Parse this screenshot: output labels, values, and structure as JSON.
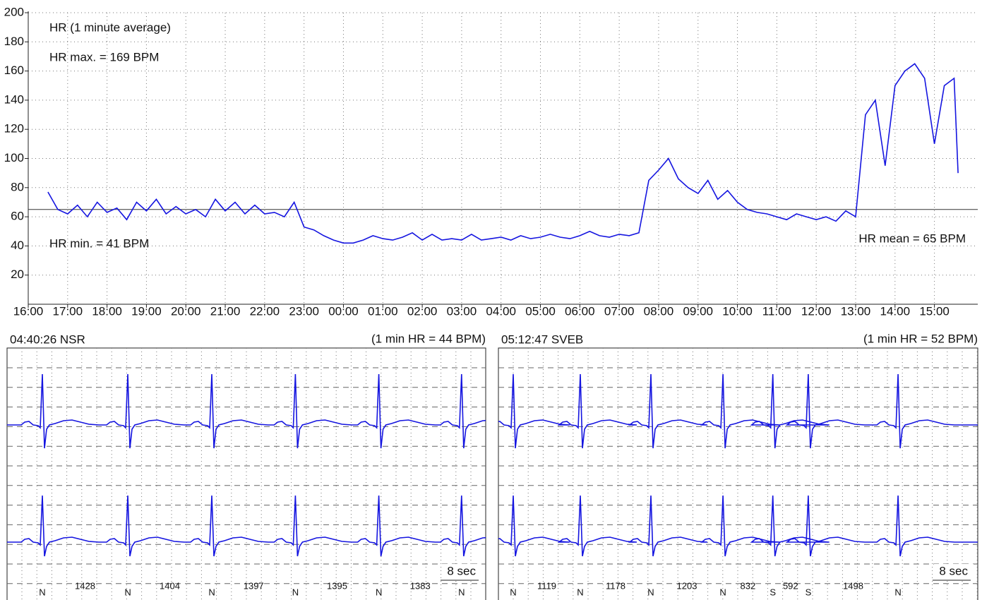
{
  "chart_data": [
    {
      "type": "line",
      "title": "HR (1 minute average)",
      "annotations": {
        "max": "HR max. = 169 BPM",
        "min": "HR min. = 41 BPM",
        "mean": "HR mean = 65 BPM"
      },
      "mean_line": 65,
      "color": "#1515e0",
      "x": [
        0.5,
        0.75,
        1,
        1.25,
        1.5,
        1.75,
        2,
        2.25,
        2.5,
        2.75,
        3,
        3.25,
        3.5,
        3.75,
        4,
        4.25,
        4.5,
        4.75,
        5,
        5.25,
        5.5,
        5.75,
        6,
        6.25,
        6.5,
        6.75,
        7,
        7.25,
        7.5,
        7.75,
        8,
        8.25,
        8.5,
        8.75,
        9,
        9.25,
        9.5,
        9.75,
        10,
        10.25,
        10.5,
        10.75,
        11,
        11.25,
        11.5,
        11.75,
        12,
        12.25,
        12.5,
        12.75,
        13,
        13.25,
        13.5,
        13.75,
        14,
        14.25,
        14.5,
        14.75,
        15,
        15.25,
        15.5,
        15.75,
        16,
        16.25,
        16.5,
        16.75,
        17,
        17.25,
        17.5,
        17.75,
        18,
        18.25,
        18.5,
        18.75,
        19,
        19.25,
        19.5,
        19.75,
        20,
        20.25,
        20.5,
        20.75,
        21,
        21.25,
        21.5,
        21.75,
        22,
        22.25,
        22.5,
        22.75,
        23,
        23.25,
        23.5,
        23.6
      ],
      "values": [
        77,
        65,
        62,
        68,
        60,
        70,
        63,
        66,
        58,
        70,
        64,
        72,
        62,
        67,
        62,
        65,
        60,
        72,
        64,
        70,
        62,
        68,
        62,
        63,
        60,
        70,
        53,
        51,
        47,
        44,
        42,
        42,
        44,
        47,
        45,
        44,
        46,
        49,
        44,
        48,
        44,
        45,
        44,
        48,
        44,
        45,
        46,
        44,
        47,
        45,
        46,
        48,
        46,
        45,
        47,
        50,
        47,
        46,
        48,
        47,
        49,
        85,
        92,
        100,
        86,
        80,
        76,
        85,
        72,
        78,
        70,
        65,
        63,
        62,
        60,
        58,
        62,
        60,
        58,
        60,
        57,
        64,
        60,
        130,
        140,
        95,
        150,
        160,
        165,
        155,
        110,
        150,
        155,
        90
      ],
      "xlim": [
        0,
        24.1
      ],
      "xticks": [
        {
          "value": 0,
          "label": "16:00"
        },
        {
          "value": 1,
          "label": "17:00"
        },
        {
          "value": 2,
          "label": "18:00"
        },
        {
          "value": 3,
          "label": "19:00"
        },
        {
          "value": 4,
          "label": "20:00"
        },
        {
          "value": 5,
          "label": "21:00"
        },
        {
          "value": 6,
          "label": "22:00"
        },
        {
          "value": 7,
          "label": "23:00"
        },
        {
          "value": 8,
          "label": "00:00"
        },
        {
          "value": 9,
          "label": "01:00"
        },
        {
          "value": 10,
          "label": "02:00"
        },
        {
          "value": 11,
          "label": "03:00"
        },
        {
          "value": 12,
          "label": "04:00"
        },
        {
          "value": 13,
          "label": "05:00"
        },
        {
          "value": 14,
          "label": "06:00"
        },
        {
          "value": 15,
          "label": "07:00"
        },
        {
          "value": 16,
          "label": "08:00"
        },
        {
          "value": 17,
          "label": "09:00"
        },
        {
          "value": 18,
          "label": "10:00"
        },
        {
          "value": 19,
          "label": "11:00"
        },
        {
          "value": 20,
          "label": "12:00"
        },
        {
          "value": 21,
          "label": "13:00"
        },
        {
          "value": 22,
          "label": "14:00"
        },
        {
          "value": 23,
          "label": "15:00"
        }
      ],
      "ylim": [
        0,
        200
      ],
      "yticks": [
        20,
        40,
        60,
        80,
        100,
        120,
        140,
        160,
        180,
        200
      ],
      "grid": true
    },
    {
      "type": "ecg",
      "title": "04:40:26 NSR",
      "hr_label": "(1 min HR = 44 BPM)",
      "duration": 8,
      "duration_label": "8 sec",
      "color": "#1515e0",
      "beats": [
        "N",
        "N",
        "N",
        "N",
        "N",
        "N"
      ],
      "rr": [
        1428,
        1404,
        1397,
        1395,
        1383
      ]
    },
    {
      "type": "ecg",
      "title": "05:12:47 SVEB",
      "hr_label": "(1 min HR = 52 BPM)",
      "duration": 8,
      "duration_label": "8 sec",
      "color": "#1515e0",
      "beats": [
        "N",
        "N",
        "N",
        "N",
        "S",
        "S",
        "N"
      ],
      "rr": [
        1119,
        1178,
        1203,
        832,
        592,
        1498
      ]
    }
  ]
}
